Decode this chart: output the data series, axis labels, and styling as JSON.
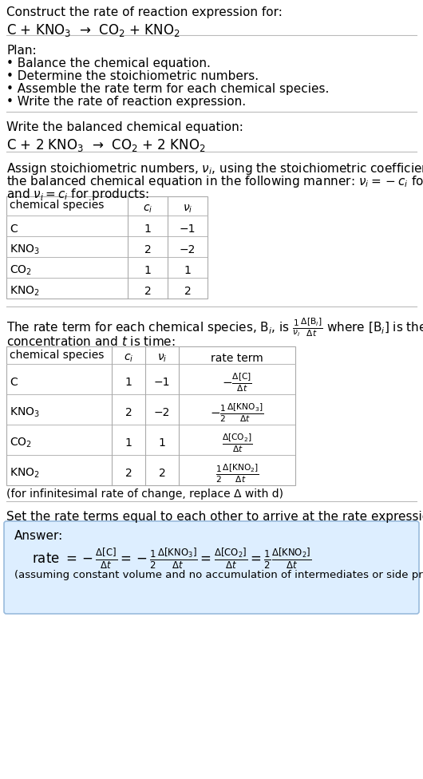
{
  "title_line1": "Construct the rate of reaction expression for:",
  "title_line2": "C + KNO$_3$  →  CO$_2$ + KNO$_2$",
  "plan_header": "Plan:",
  "plan_items": [
    "• Balance the chemical equation.",
    "• Determine the stoichiometric numbers.",
    "• Assemble the rate term for each chemical species.",
    "• Write the rate of reaction expression."
  ],
  "balanced_header": "Write the balanced chemical equation:",
  "balanced_eq": "C + 2 KNO$_3$  →  CO$_2$ + 2 KNO$_2$",
  "stoich_intro1": "Assign stoichiometric numbers, $\\nu_i$, using the stoichiometric coefficients, $c_i$, from",
  "stoich_intro2": "the balanced chemical equation in the following manner: $\\nu_i = -c_i$ for reactants",
  "stoich_intro3": "and $\\nu_i = c_i$ for products:",
  "table1_headers": [
    "chemical species",
    "$c_i$",
    "$\\nu_i$"
  ],
  "table1_rows": [
    [
      "C",
      "1",
      "−1"
    ],
    [
      "KNO$_3$",
      "2",
      "−2"
    ],
    [
      "CO$_2$",
      "1",
      "1"
    ],
    [
      "KNO$_2$",
      "2",
      "2"
    ]
  ],
  "rate_intro1": "The rate term for each chemical species, B$_i$, is $\\frac{1}{\\nu_i}\\frac{\\Delta[\\mathrm{B}_i]}{\\Delta t}$ where [B$_i$] is the amount",
  "rate_intro2": "concentration and $t$ is time:",
  "table2_headers": [
    "chemical species",
    "$c_i$",
    "$\\nu_i$",
    "rate term"
  ],
  "table2_rows": [
    [
      "C",
      "1",
      "−1",
      "$-\\frac{\\Delta[\\mathrm{C}]}{\\Delta t}$"
    ],
    [
      "KNO$_3$",
      "2",
      "−2",
      "$-\\frac{1}{2}\\frac{\\Delta[\\mathrm{KNO_3}]}{\\Delta t}$"
    ],
    [
      "CO$_2$",
      "1",
      "1",
      "$\\frac{\\Delta[\\mathrm{CO_2}]}{\\Delta t}$"
    ],
    [
      "KNO$_2$",
      "2",
      "2",
      "$\\frac{1}{2}\\frac{\\Delta[\\mathrm{KNO_2}]}{\\Delta t}$"
    ]
  ],
  "infinitesimal_note": "(for infinitesimal rate of change, replace Δ with d)",
  "rate_expr_intro": "Set the rate terms equal to each other to arrive at the rate expression:",
  "answer_box_color": "#ddeeff",
  "answer_label": "Answer:",
  "answer_eq": "rate $= -\\frac{\\Delta[\\mathrm{C}]}{\\Delta t} = -\\frac{1}{2}\\frac{\\Delta[\\mathrm{KNO_3}]}{\\Delta t} = \\frac{\\Delta[\\mathrm{CO_2}]}{\\Delta t} = \\frac{1}{2}\\frac{\\Delta[\\mathrm{KNO_2}]}{\\Delta t}$",
  "answer_note": "(assuming constant volume and no accumulation of intermediates or side products)",
  "bg_color": "#ffffff",
  "text_color": "#000000",
  "table_border_color": "#aaaaaa",
  "divider_color": "#bbbbbb"
}
